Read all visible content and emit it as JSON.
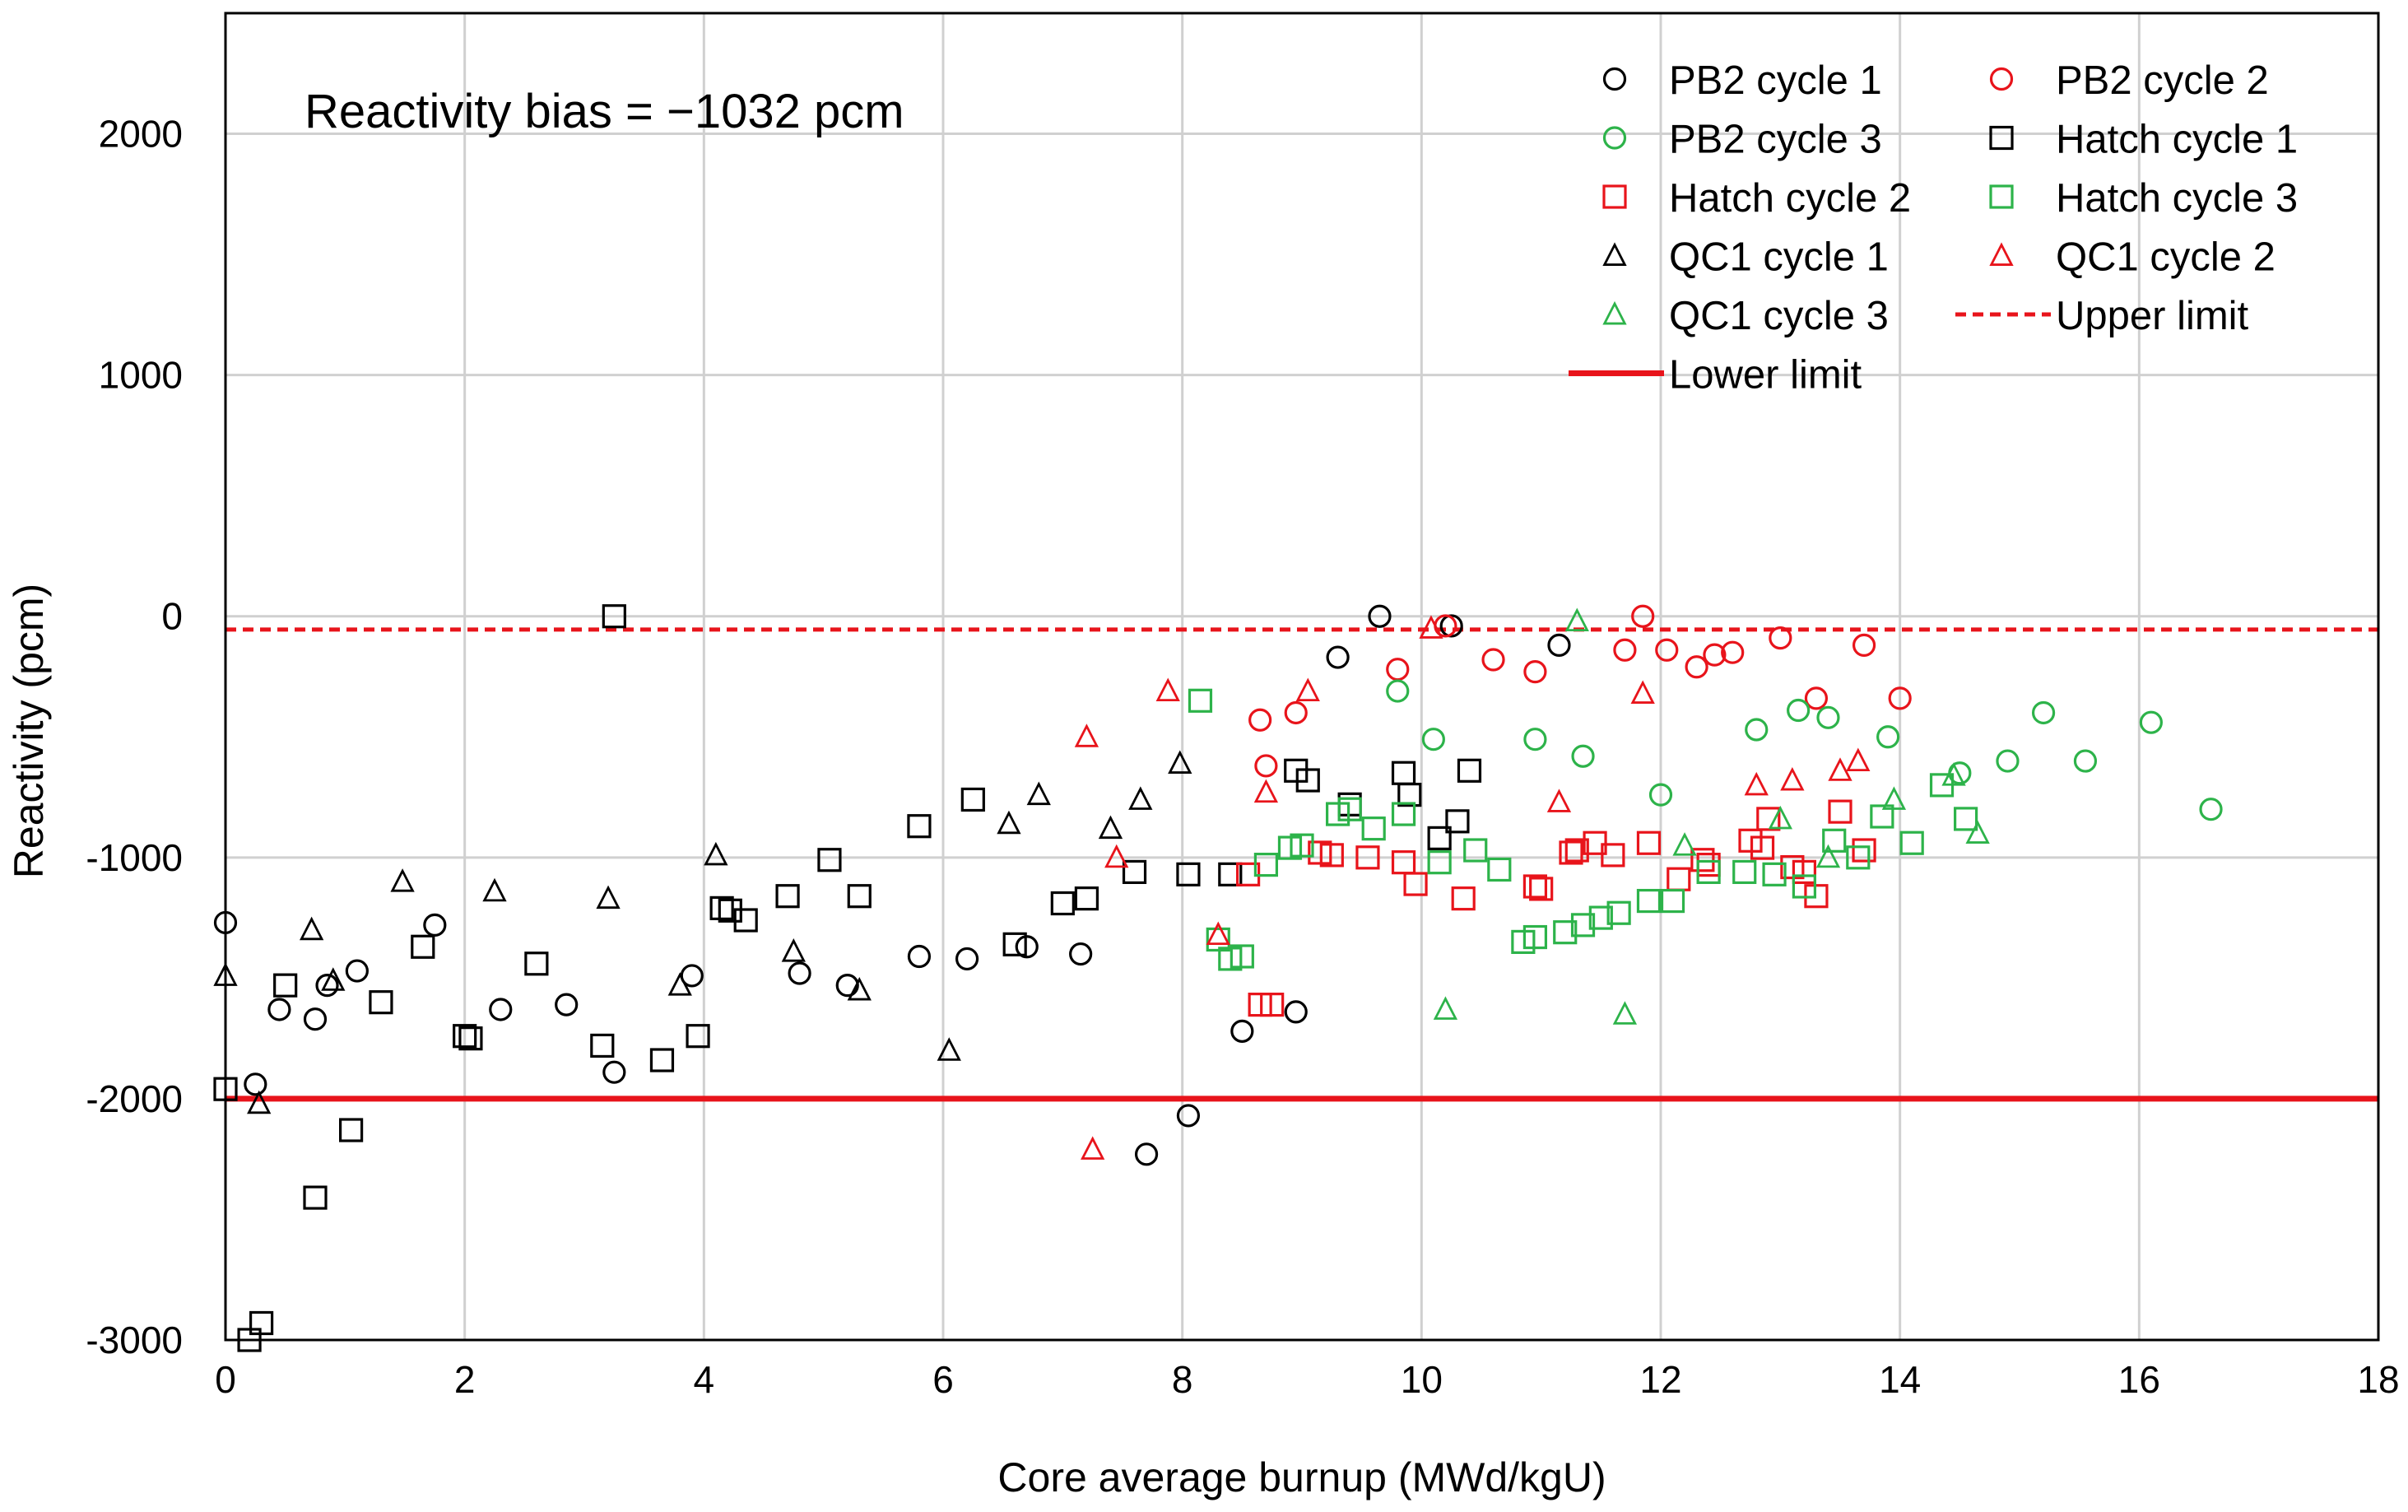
{
  "chart_data": {
    "type": "scatter",
    "title": "",
    "annotation": "Reactivity bias = −1032 pcm",
    "xlabel": "Core average burnup (MWd/kgU)",
    "ylabel": "Reactivity (pcm)",
    "xlim": [
      0,
      18
    ],
    "ylim": [
      -3000,
      2500
    ],
    "xticks": [
      0,
      2,
      4,
      6,
      8,
      10,
      12,
      14,
      16,
      18
    ],
    "yticks": [
      -3000,
      -2000,
      -1000,
      0,
      1000,
      2000
    ],
    "ytick_labels": [
      "-3000",
      "-2000",
      "-1000",
      "0",
      "1000",
      "2000"
    ],
    "grid": true,
    "legend_position": "top-right",
    "limits": [
      {
        "name": "Upper limit",
        "y": -55,
        "color": "#e8141b",
        "style": "dashed"
      },
      {
        "name": "Lower limit",
        "y": -2000,
        "color": "#e8141b",
        "style": "solid"
      }
    ],
    "series": [
      {
        "name": "PB2 cycle 1",
        "marker": "circle",
        "color": "#000000",
        "x": [
          0.0,
          0.25,
          0.45,
          0.75,
          0.85,
          1.1,
          1.75,
          2.3,
          2.85,
          3.25,
          3.9,
          4.8,
          5.2,
          5.8,
          6.2,
          6.7,
          7.15,
          7.7,
          8.05,
          8.5,
          8.95,
          9.3,
          9.65,
          10.25,
          11.15
        ],
        "y": [
          -1270,
          -1940,
          -1630,
          -1670,
          -1530,
          -1470,
          -1280,
          -1630,
          -1610,
          -1890,
          -1490,
          -1480,
          -1530,
          -1410,
          -1420,
          -1370,
          -1400,
          -2230,
          -2070,
          -1720,
          -1640,
          -170,
          0,
          -40,
          -120
        ]
      },
      {
        "name": "PB2 cycle 2",
        "marker": "circle",
        "color": "#e8141b",
        "x": [
          8.65,
          8.7,
          8.95,
          9.8,
          10.2,
          10.6,
          10.95,
          11.7,
          11.85,
          12.05,
          12.3,
          12.45,
          12.6,
          13.0,
          13.3,
          13.7,
          14.0
        ],
        "y": [
          -430,
          -620,
          -400,
          -220,
          -40,
          -180,
          -230,
          -140,
          0,
          -140,
          -210,
          -160,
          -150,
          -90,
          -340,
          -120,
          -340
        ]
      },
      {
        "name": "PB2 cycle 3",
        "marker": "circle",
        "color": "#2db34a",
        "x": [
          9.8,
          10.1,
          10.95,
          11.35,
          12.0,
          12.8,
          13.15,
          13.4,
          13.9,
          14.5,
          14.9,
          15.2,
          15.55,
          16.1,
          16.6
        ],
        "y": [
          -310,
          -510,
          -510,
          -580,
          -740,
          -470,
          -390,
          -420,
          -500,
          -650,
          -600,
          -400,
          -600,
          -440,
          -800
        ]
      },
      {
        "name": "Hatch cycle 1",
        "marker": "square",
        "color": "#000000",
        "x": [
          0.0,
          0.2,
          0.3,
          0.5,
          0.75,
          1.05,
          1.3,
          1.65,
          2.0,
          2.05,
          2.6,
          3.15,
          3.25,
          3.65,
          3.95,
          4.15,
          4.22,
          4.35,
          4.7,
          5.05,
          5.3,
          5.8,
          6.25,
          6.6,
          7.0,
          7.2,
          7.6,
          8.05,
          8.4,
          8.95,
          9.05,
          9.4,
          9.85,
          9.9,
          10.15,
          10.3,
          10.4
        ],
        "y": [
          -1960,
          -3000,
          -2930,
          -1530,
          -2410,
          -2130,
          -1600,
          -1370,
          -1740,
          -1750,
          -1440,
          -1780,
          0,
          -1840,
          -1740,
          -1210,
          -1220,
          -1260,
          -1160,
          -1010,
          -1160,
          -870,
          -760,
          -1360,
          -1190,
          -1170,
          -1060,
          -1070,
          -1070,
          -640,
          -680,
          -780,
          -650,
          -740,
          -920,
          -850,
          -640
        ]
      },
      {
        "name": "Hatch cycle 2",
        "marker": "square",
        "color": "#e8141b",
        "x": [
          8.55,
          8.65,
          8.75,
          9.15,
          9.25,
          9.55,
          9.85,
          9.95,
          10.35,
          10.95,
          11.0,
          11.25,
          11.3,
          11.45,
          11.6,
          11.9,
          12.15,
          12.35,
          12.4,
          12.75,
          12.85,
          12.9,
          13.1,
          13.2,
          13.3,
          13.5,
          13.7
        ],
        "y": [
          -1070,
          -1610,
          -1610,
          -980,
          -990,
          -1000,
          -1020,
          -1110,
          -1170,
          -1120,
          -1130,
          -980,
          -970,
          -940,
          -990,
          -940,
          -1090,
          -1010,
          -1030,
          -930,
          -960,
          -840,
          -1040,
          -1060,
          -1160,
          -810,
          -970
        ]
      },
      {
        "name": "Hatch cycle 3",
        "marker": "square",
        "color": "#2db34a",
        "x": [
          8.15,
          8.3,
          8.4,
          8.5,
          8.7,
          8.9,
          9.0,
          9.3,
          9.4,
          9.6,
          9.85,
          10.15,
          10.45,
          10.65,
          10.85,
          10.95,
          11.2,
          11.35,
          11.5,
          11.65,
          11.9,
          12.1,
          12.4,
          12.7,
          12.95,
          13.2,
          13.45,
          13.65,
          13.85,
          14.1,
          14.35,
          14.55
        ],
        "y": [
          -350,
          -1340,
          -1420,
          -1410,
          -1030,
          -960,
          -950,
          -820,
          -800,
          -880,
          -820,
          -1020,
          -970,
          -1050,
          -1350,
          -1330,
          -1310,
          -1280,
          -1250,
          -1230,
          -1180,
          -1180,
          -1060,
          -1060,
          -1070,
          -1120,
          -930,
          -1000,
          -830,
          -940,
          -700,
          -840
        ]
      },
      {
        "name": "QC1 cycle 1",
        "marker": "triangle",
        "color": "#000000",
        "x": [
          0.0,
          0.28,
          0.72,
          0.9,
          1.48,
          2.25,
          3.2,
          3.8,
          4.1,
          4.75,
          5.3,
          6.05,
          6.55,
          6.8,
          7.4,
          7.65,
          7.98
        ],
        "y": [
          -1490,
          -2020,
          -1300,
          -1510,
          -1100,
          -1140,
          -1170,
          -1530,
          -990,
          -1390,
          -1550,
          -1800,
          -860,
          -740,
          -880,
          -760,
          -610
        ]
      },
      {
        "name": "QC1 cycle 2",
        "marker": "triangle",
        "color": "#e8141b",
        "x": [
          7.2,
          7.25,
          7.45,
          7.88,
          8.3,
          8.7,
          9.05,
          10.08,
          11.15,
          11.85,
          12.8,
          13.1,
          13.5,
          13.65
        ],
        "y": [
          -500,
          -2210,
          -1000,
          -310,
          -1320,
          -730,
          -310,
          -50,
          -770,
          -320,
          -700,
          -680,
          -640,
          -600
        ]
      },
      {
        "name": "QC1 cycle 3",
        "marker": "triangle",
        "color": "#2db34a",
        "x": [
          10.2,
          11.3,
          11.7,
          12.2,
          13.0,
          13.4,
          13.95,
          14.45,
          14.65
        ],
        "y": [
          -1630,
          -20,
          -1650,
          -950,
          -840,
          -1000,
          -760,
          -660,
          -900
        ]
      }
    ]
  },
  "legend": {
    "entries": [
      "PB2 cycle 1",
      "PB2 cycle 2",
      "PB2 cycle 3",
      "Hatch cycle 1",
      "Hatch cycle 2",
      "Hatch cycle 3",
      "QC1 cycle 1",
      "QC1 cycle 2",
      "QC1 cycle 3",
      "Upper limit",
      "Lower limit"
    ]
  }
}
